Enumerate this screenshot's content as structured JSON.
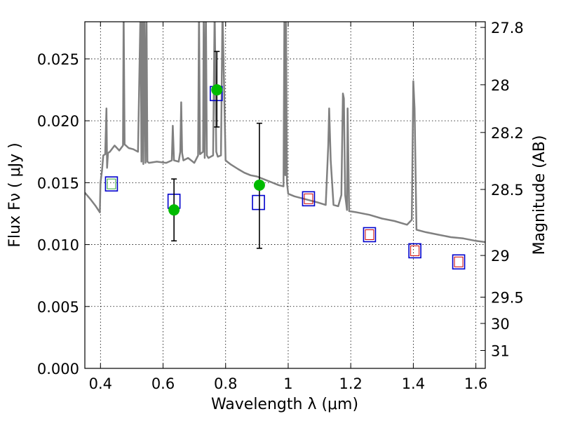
{
  "chart_data": {
    "type": "scatter",
    "xlabel": "Wavelength  λ (μm)",
    "ylabel": "Flux  Fν  ( μJy )",
    "y2label": "Magnitude (AB)",
    "xlim": [
      0.35,
      1.63
    ],
    "ylim": [
      0.0,
      0.028
    ],
    "grid": true,
    "x_ticks": [
      {
        "value": 0.4,
        "label": "0.4"
      },
      {
        "value": 0.6,
        "label": "0.6"
      },
      {
        "value": 0.8,
        "label": "0.8"
      },
      {
        "value": 1.0,
        "label": "1"
      },
      {
        "value": 1.2,
        "label": "1.2"
      },
      {
        "value": 1.4,
        "label": "1.4"
      },
      {
        "value": 1.6,
        "label": "1.6"
      }
    ],
    "y_ticks": [
      {
        "value": 0.0,
        "label": "0.000"
      },
      {
        "value": 0.005,
        "label": "0.005"
      },
      {
        "value": 0.01,
        "label": "0.010"
      },
      {
        "value": 0.015,
        "label": "0.015"
      },
      {
        "value": 0.02,
        "label": "0.020"
      },
      {
        "value": 0.025,
        "label": "0.025"
      }
    ],
    "mag_ticks": [
      {
        "mag": 27.8,
        "label": "27.8"
      },
      {
        "mag": 28.0,
        "label": "28"
      },
      {
        "mag": 28.2,
        "label": "28.2"
      },
      {
        "mag": 28.5,
        "label": "28.5"
      },
      {
        "mag": 29.0,
        "label": "29"
      },
      {
        "mag": 29.5,
        "label": "29.5"
      },
      {
        "mag": 30.0,
        "label": "30"
      },
      {
        "mag": 31.0,
        "label": "31"
      }
    ],
    "series": [
      {
        "kind": "model_spectrum",
        "color": "#808080",
        "x": [
          0.35,
          0.37,
          0.385,
          0.398,
          0.4,
          0.405,
          0.409,
          0.415,
          0.419,
          0.421,
          0.424,
          0.43,
          0.445,
          0.46,
          0.472,
          0.474,
          0.477,
          0.49,
          0.505,
          0.52,
          0.528,
          0.531,
          0.534,
          0.537,
          0.54,
          0.544,
          0.547,
          0.55,
          0.555,
          0.58,
          0.61,
          0.628,
          0.631,
          0.635,
          0.65,
          0.655,
          0.658,
          0.661,
          0.665,
          0.68,
          0.7,
          0.712,
          0.715,
          0.718,
          0.728,
          0.73,
          0.733,
          0.737,
          0.74,
          0.745,
          0.76,
          0.765,
          0.77,
          0.775,
          0.785,
          0.79,
          0.8,
          0.815,
          0.84,
          0.86,
          0.88,
          0.9,
          0.93,
          0.95,
          0.97,
          0.985,
          0.988,
          0.991,
          0.993,
          0.996,
          1.0,
          1.02,
          1.05,
          1.08,
          1.095,
          1.12,
          1.128,
          1.131,
          1.136,
          1.145,
          1.16,
          1.17,
          1.175,
          1.178,
          1.182,
          1.188,
          1.19,
          1.195,
          1.22,
          1.26,
          1.3,
          1.34,
          1.38,
          1.395,
          1.4,
          1.404,
          1.41,
          1.44,
          1.48,
          1.52,
          1.56,
          1.6,
          1.63
        ],
        "y": [
          0.0142,
          0.0136,
          0.0131,
          0.0126,
          0.015,
          0.016,
          0.0172,
          0.0173,
          0.021,
          0.0162,
          0.0174,
          0.0175,
          0.018,
          0.0176,
          0.018,
          0.029,
          0.0181,
          0.0178,
          0.0177,
          0.0175,
          0.029,
          0.0167,
          0.029,
          0.0165,
          0.029,
          0.0166,
          0.029,
          0.0167,
          0.0166,
          0.0167,
          0.0166,
          0.0168,
          0.0196,
          0.0168,
          0.0167,
          0.0175,
          0.0215,
          0.0174,
          0.0168,
          0.017,
          0.0166,
          0.0172,
          0.029,
          0.0173,
          0.0175,
          0.029,
          0.017,
          0.029,
          0.0172,
          0.017,
          0.0172,
          0.029,
          0.0175,
          0.0171,
          0.0172,
          0.029,
          0.0168,
          0.0165,
          0.0161,
          0.0158,
          0.0156,
          0.0155,
          0.0152,
          0.015,
          0.0148,
          0.0147,
          0.029,
          0.0156,
          0.029,
          0.015,
          0.0141,
          0.0139,
          0.0137,
          0.0135,
          0.0134,
          0.0132,
          0.018,
          0.021,
          0.0168,
          0.0132,
          0.0131,
          0.014,
          0.0222,
          0.0218,
          0.014,
          0.0128,
          0.021,
          0.0127,
          0.0126,
          0.0124,
          0.0121,
          0.0119,
          0.0116,
          0.012,
          0.0232,
          0.021,
          0.0112,
          0.011,
          0.0108,
          0.0106,
          0.0105,
          0.0103,
          0.0102
        ]
      },
      {
        "kind": "model_photometry_boxes",
        "color": "#0000cc",
        "x": [
          0.435,
          0.635,
          0.77,
          0.905,
          1.065,
          1.26,
          1.405,
          1.545
        ],
        "y": [
          0.0149,
          0.0135,
          0.0222,
          0.0134,
          0.0137,
          0.0108,
          0.0095,
          0.0086
        ]
      },
      {
        "kind": "inner_boxes",
        "colors": [
          "#33aa33",
          "#cc0000"
        ],
        "x": [
          0.435,
          1.065,
          1.26,
          1.405,
          1.545
        ],
        "y": [
          0.0149,
          0.0137,
          0.0108,
          0.0095,
          0.0086
        ],
        "color_index": [
          0,
          1,
          1,
          1,
          1
        ]
      },
      {
        "kind": "observed_points",
        "color": "#00bb00",
        "x": [
          0.635,
          0.772,
          0.908
        ],
        "y": [
          0.0128,
          0.0225,
          0.0148
        ],
        "yerr_low": [
          0.0103,
          0.0195,
          0.0097
        ],
        "yerr_high": [
          0.0153,
          0.0256,
          0.0198
        ]
      }
    ]
  }
}
